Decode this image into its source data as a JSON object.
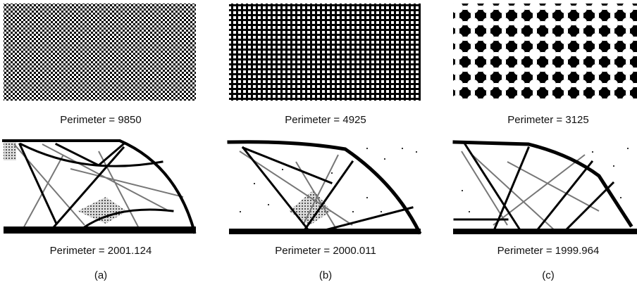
{
  "panels": [
    {
      "label": "(a)",
      "top_caption": "Perimeter = 9850",
      "bottom_caption": "Perimeter = 2001.124"
    },
    {
      "label": "(b)",
      "top_caption": "Perimeter = 4925",
      "bottom_caption": "Perimeter = 2000.011"
    },
    {
      "label": "(c)",
      "top_caption": "Perimeter = 3125",
      "bottom_caption": "Perimeter = 1999.964"
    }
  ]
}
